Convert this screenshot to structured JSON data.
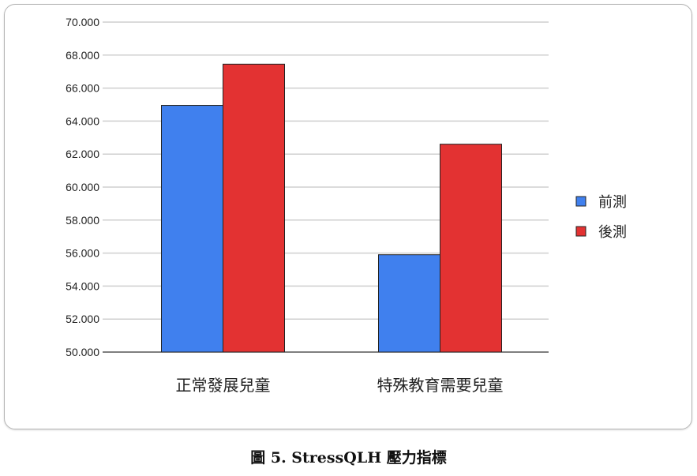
{
  "chart_data": {
    "type": "bar",
    "title": "",
    "categories": [
      "正常發展兒童",
      "特殊教育需要兒童"
    ],
    "series": [
      {
        "name": "前測",
        "color": "#4080ee",
        "values": [
          64.95,
          55.9
        ]
      },
      {
        "name": "後測",
        "color": "#e33232",
        "values": [
          67.45,
          62.6
        ]
      }
    ],
    "ylim": [
      50,
      70
    ],
    "yticks": [
      "50.000",
      "52.000",
      "54.000",
      "56.000",
      "58.000",
      "60.000",
      "62.000",
      "64.000",
      "66.000",
      "68.000",
      "70.000"
    ],
    "grid": true,
    "legend": "right"
  },
  "caption": "圖 5. StressQLH 壓力指標"
}
